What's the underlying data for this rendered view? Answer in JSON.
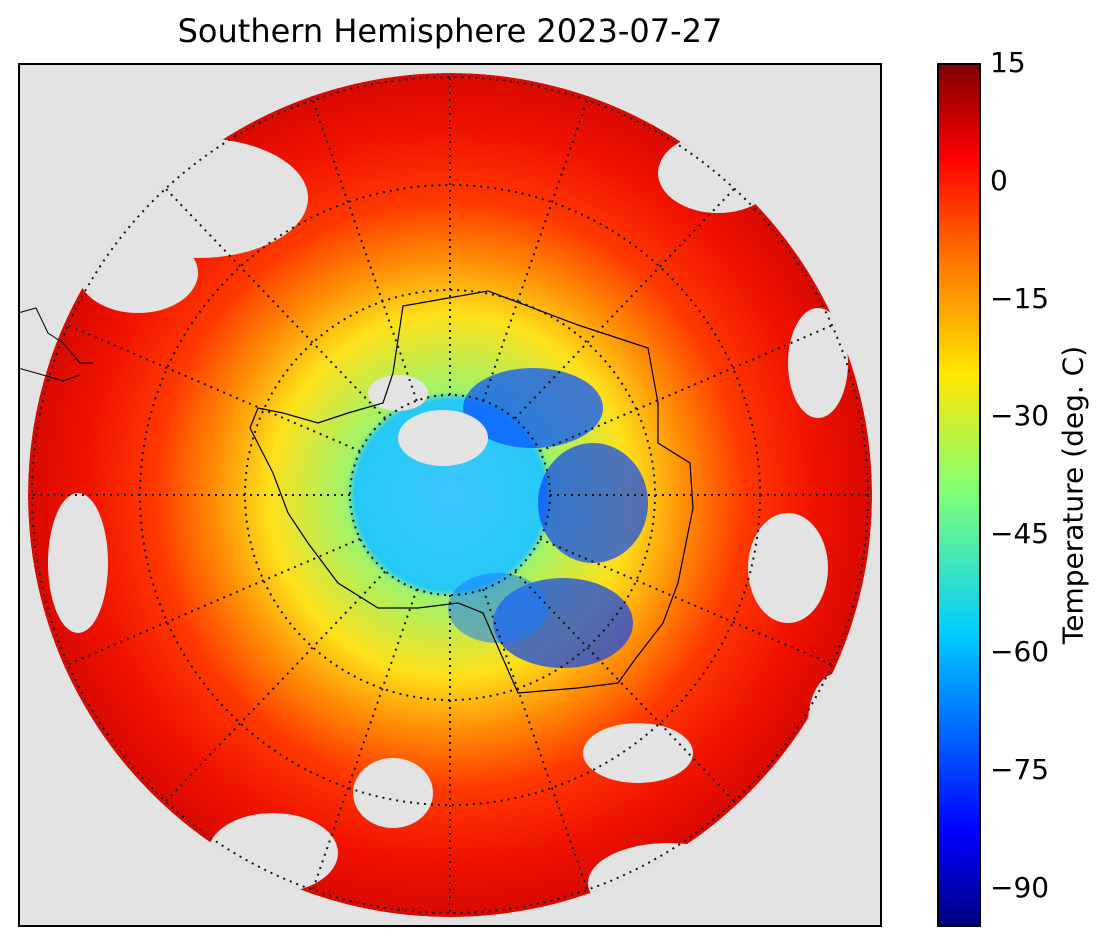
{
  "title": "Southern Hemisphere 2023-07-27",
  "colorbar": {
    "label": "Temperature (deg. C)",
    "min": -95,
    "max": 15,
    "ticks": [
      "15",
      "0",
      "−15",
      "−30",
      "−45",
      "−60",
      "−75",
      "−90"
    ],
    "tick_values": [
      15,
      0,
      -15,
      -30,
      -45,
      -60,
      -75,
      -90
    ],
    "colormap": "jet"
  },
  "map": {
    "projection": "south-polar-stereographic",
    "background_color": "#e3e3e3",
    "graticule": "dotted meridians and parallels",
    "colors": {
      "warm": "#e8200a",
      "cold": "#0a3cf0",
      "coast": "#000000"
    }
  }
}
